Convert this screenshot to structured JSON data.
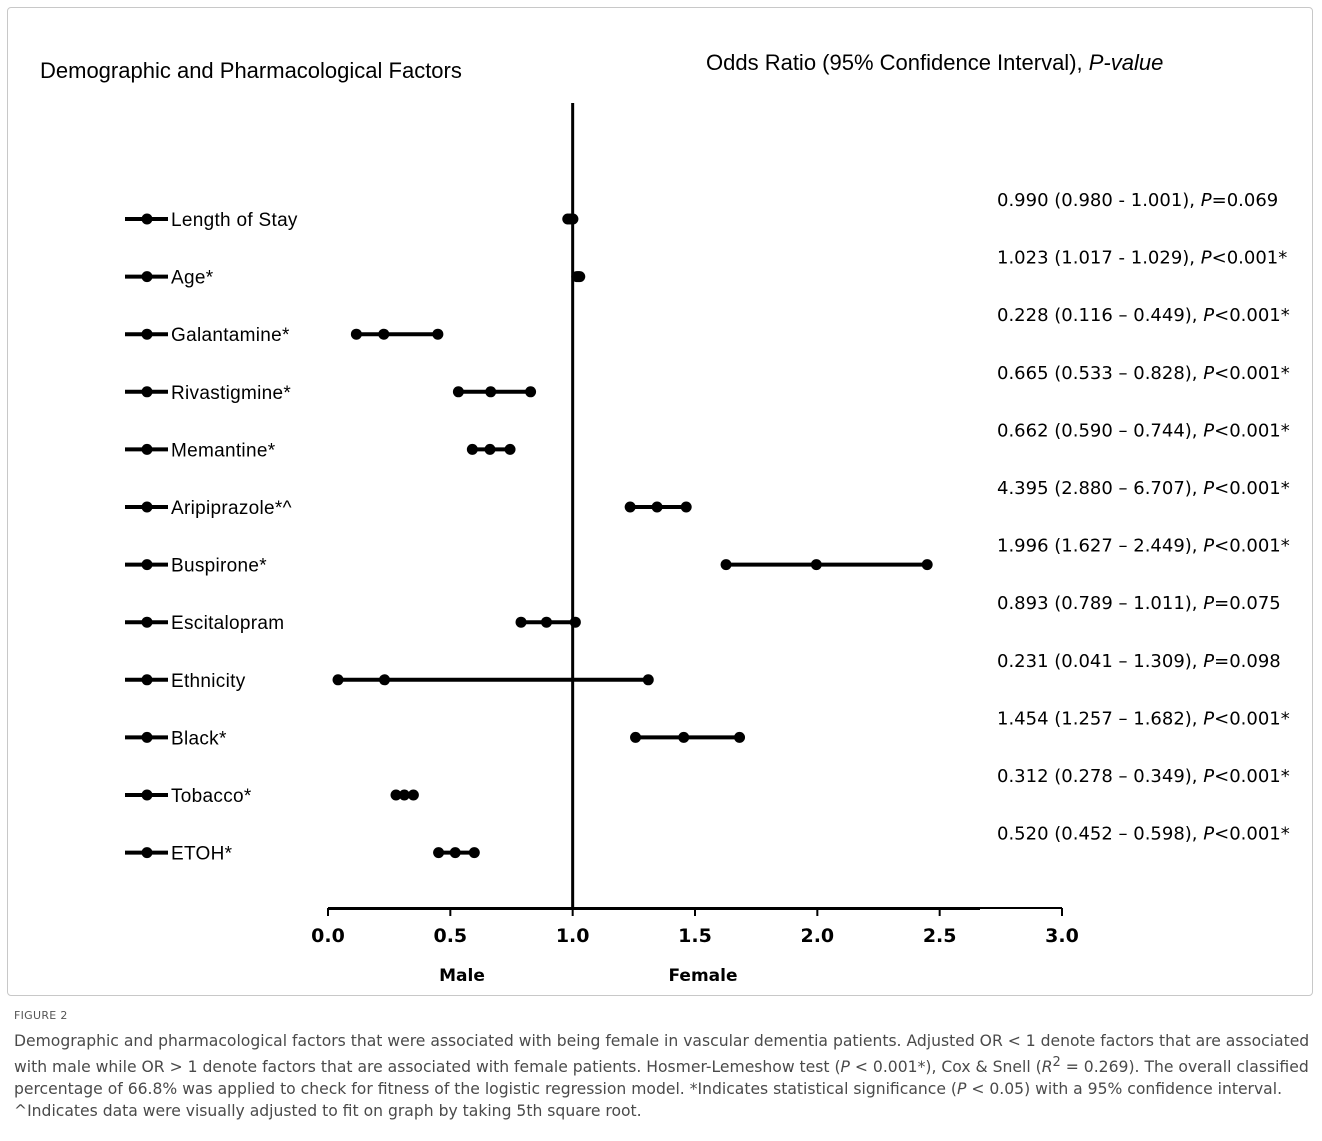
{
  "chart_data": {
    "type": "forest",
    "left_heading": "Demographic and Pharmacological Factors",
    "right_heading": "Odds Ratio (95% Confidence Interval),",
    "right_heading_italic": "P-value",
    "reference_line": 1.0,
    "xlim": [
      0.0,
      3.0
    ],
    "x_ticks": [
      "0.0",
      "0.5",
      "1.0",
      "1.5",
      "2.0",
      "2.5",
      "3.0"
    ],
    "x_tick_values": [
      0,
      0.5,
      1.0,
      1.5,
      2.0,
      2.5,
      3.0
    ],
    "side_labels": {
      "left": "Male",
      "right": "Female"
    },
    "rows": [
      {
        "label": "Length of Stay",
        "or": 0.99,
        "lo": 0.98,
        "hi": 1.001,
        "ci_text": "0.990 (0.980 - 1.001), ",
        "p_prefix": "P",
        "p_text": "=0.069"
      },
      {
        "label": "Age*",
        "or": 1.023,
        "lo": 1.017,
        "hi": 1.029,
        "ci_text": "1.023 (1.017 - 1.029), ",
        "p_prefix": "P",
        "p_text": "<0.001*"
      },
      {
        "label": "Galantamine*",
        "or": 0.228,
        "lo": 0.116,
        "hi": 0.449,
        "ci_text": "0.228 (0.116 – 0.449), ",
        "p_prefix": "P",
        "p_text": "<0.001*"
      },
      {
        "label": "Rivastigmine*",
        "or": 0.665,
        "lo": 0.533,
        "hi": 0.828,
        "ci_text": "0.665 (0.533 – 0.828), ",
        "p_prefix": "P",
        "p_text": "<0.001*"
      },
      {
        "label": "Memantine*",
        "or": 0.662,
        "lo": 0.59,
        "hi": 0.744,
        "ci_text": "0.662 (0.590 – 0.744), ",
        "p_prefix": "P",
        "p_text": "<0.001*"
      },
      {
        "label": "Aripiprazole*^",
        "or": 1.345,
        "lo": 1.235,
        "hi": 1.464,
        "ci_text": "4.395 (2.880 – 6.707), ",
        "p_prefix": "P",
        "p_text": "<0.001*"
      },
      {
        "label": "Buspirone*",
        "or": 1.996,
        "lo": 1.627,
        "hi": 2.449,
        "ci_text": "1.996 (1.627 – 2.449), ",
        "p_prefix": "P",
        "p_text": "<0.001*"
      },
      {
        "label": "Escitalopram",
        "or": 0.893,
        "lo": 0.789,
        "hi": 1.011,
        "ci_text": "0.893 (0.789 – 1.011), ",
        "p_prefix": "P",
        "p_text": "=0.075"
      },
      {
        "label": "Ethnicity",
        "or": 0.231,
        "lo": 0.041,
        "hi": 1.309,
        "ci_text": "0.231 (0.041 – 1.309), ",
        "p_prefix": "P",
        "p_text": "=0.098"
      },
      {
        "label": "Black*",
        "or": 1.454,
        "lo": 1.257,
        "hi": 1.682,
        "ci_text": "1.454 (1.257 – 1.682), ",
        "p_prefix": "P",
        "p_text": "<0.001*"
      },
      {
        "label": "Tobacco*",
        "or": 0.312,
        "lo": 0.278,
        "hi": 0.349,
        "ci_text": "0.312 (0.278 – 0.349), ",
        "p_prefix": "P",
        "p_text": "<0.001*"
      },
      {
        "label": "ETOH*",
        "or": 0.52,
        "lo": 0.452,
        "hi": 0.598,
        "ci_text": "0.520 (0.452 – 0.598), ",
        "p_prefix": "P",
        "p_text": "<0.001*"
      }
    ],
    "grid": false
  },
  "figure": {
    "label": "FIGURE 2",
    "caption_html": "Demographic and pharmacological factors that were associated with being female in vascular dementia patients. Adjusted OR &lt; 1 denote factors that are associated with male while OR &gt; 1 denote factors that are associated with female patients. Hosmer-Lemeshow test (<i>P</i> &lt; 0.001*), Cox &amp; Snell (<i>R</i><sup>2</sup> = 0.269). The overall classified percentage of 66.8% was applied to check for fitness of the logistic regression model. *Indicates statistical significance (<i>P</i> &lt; 0.05) with a 95% confidence interval. ^Indicates data were visually adjusted to fit on graph by taking 5th square root."
  }
}
